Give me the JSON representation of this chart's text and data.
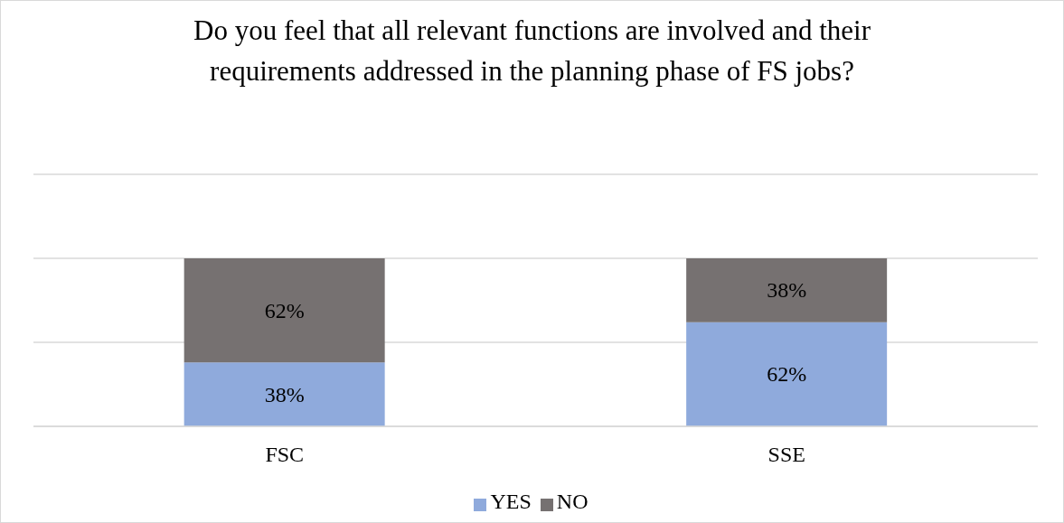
{
  "chart_data": {
    "type": "bar",
    "title": "Do you feel that all relevant functions are involved and their requirements addressed in the planning phase of FS jobs?",
    "categories": [
      "FSC",
      "SSE"
    ],
    "stacked": true,
    "series": [
      {
        "name": "YES",
        "color": "#8faadc",
        "values": [
          38,
          62
        ],
        "value_labels": [
          "38%",
          "62%"
        ]
      },
      {
        "name": "NO",
        "color": "#767171",
        "values": [
          62,
          38
        ],
        "value_labels": [
          "62%",
          "38%"
        ]
      }
    ],
    "ylim": [
      0,
      150
    ],
    "yticks": [
      {
        "value": 0,
        "label": null
      },
      {
        "value": 50,
        "label": null
      },
      {
        "value": 100,
        "label": null
      },
      {
        "value": 150,
        "label": null
      }
    ],
    "tick_labels": "x",
    "grid": "y",
    "legend": "bottom"
  }
}
